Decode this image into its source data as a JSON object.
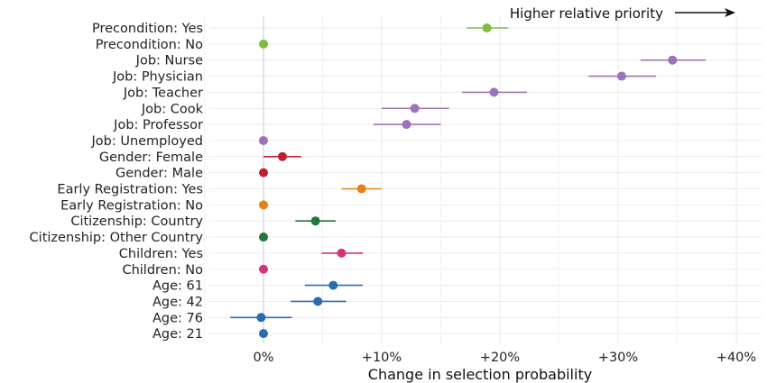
{
  "chart_data": {
    "type": "dot-errorbar",
    "xlabel": "Change in selection probability",
    "xlim": [
      -5,
      41
    ],
    "x_ticks": [
      0,
      10,
      20,
      30,
      40
    ],
    "x_tick_labels": [
      "0%",
      "+10%",
      "+20%",
      "+30%",
      "+40%"
    ],
    "grid": true,
    "annotation": "Higher relative priority",
    "colors": {
      "precondition": "#7fbc41",
      "job": "#9e72b9",
      "gender": "#c0202e",
      "registration": "#e6801a",
      "citizenship": "#1f7a3a",
      "children": "#d6337f",
      "age": "#2b6cb0"
    },
    "points": [
      {
        "label": "Precondition: Yes",
        "value": 18.9,
        "lo": 17.2,
        "hi": 20.7,
        "color": "#7fbc41"
      },
      {
        "label": "Precondition: No",
        "value": 0,
        "color": "#7fbc41"
      },
      {
        "label": "Job: Nurse",
        "value": 34.6,
        "lo": 31.9,
        "hi": 37.4,
        "color": "#9e72b9"
      },
      {
        "label": "Job: Physician",
        "value": 30.3,
        "lo": 27.5,
        "hi": 33.2,
        "color": "#9e72b9"
      },
      {
        "label": "Job: Teacher",
        "value": 19.5,
        "lo": 16.8,
        "hi": 22.3,
        "color": "#9e72b9"
      },
      {
        "label": "Job: Cook",
        "value": 12.8,
        "lo": 10.0,
        "hi": 15.7,
        "color": "#9e72b9"
      },
      {
        "label": "Job: Professor",
        "value": 12.1,
        "lo": 9.3,
        "hi": 15.0,
        "color": "#9e72b9"
      },
      {
        "label": "Job: Unemployed",
        "value": 0,
        "color": "#9e72b9"
      },
      {
        "label": "Gender: Female",
        "value": 1.6,
        "lo": 0.0,
        "hi": 3.2,
        "color": "#c0202e"
      },
      {
        "label": "Gender: Male",
        "value": 0,
        "color": "#c0202e"
      },
      {
        "label": "Early Registration: Yes",
        "value": 8.3,
        "lo": 6.6,
        "hi": 10.0,
        "color": "#e6801a"
      },
      {
        "label": "Early Registration: No",
        "value": 0,
        "color": "#e6801a"
      },
      {
        "label": "Citizenship: Country",
        "value": 4.4,
        "lo": 2.7,
        "hi": 6.1,
        "color": "#1f7a3a"
      },
      {
        "label": "Citizenship: Other Country",
        "value": 0,
        "color": "#1f7a3a"
      },
      {
        "label": "Children: Yes",
        "value": 6.6,
        "lo": 4.9,
        "hi": 8.4,
        "color": "#d6337f"
      },
      {
        "label": "Children: No",
        "value": 0,
        "color": "#d6337f"
      },
      {
        "label": "Age: 61",
        "value": 5.9,
        "lo": 3.5,
        "hi": 8.4,
        "color": "#2b6cb0"
      },
      {
        "label": "Age: 42",
        "value": 4.6,
        "lo": 2.3,
        "hi": 7.0,
        "color": "#2b6cb0"
      },
      {
        "label": "Age: 76",
        "value": -0.2,
        "lo": -2.8,
        "hi": 2.4,
        "color": "#2b6cb0"
      },
      {
        "label": "Age: 21",
        "value": 0,
        "color": "#2b6cb0"
      }
    ]
  }
}
